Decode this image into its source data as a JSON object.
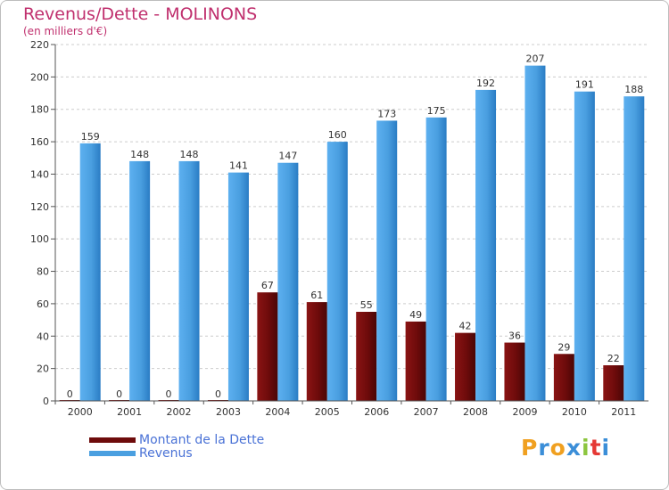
{
  "title": "Revenus/Dette - MOLINONS",
  "subtitle": "(en milliers d'€)",
  "logo": {
    "text": "Proxiti",
    "letters": [
      "P",
      "r",
      "o",
      "x",
      "i",
      "t",
      "i"
    ],
    "colors": [
      "#f0a020",
      "#3b8ed8",
      "#f0a020",
      "#3b8ed8",
      "#8dc63f",
      "#e53935",
      "#3b8ed8"
    ]
  },
  "colors": {
    "dette": "#6e0b0b",
    "revenus": "#4a9fe0",
    "axis": "#555555",
    "grid": "#cccccc"
  },
  "chart_data": {
    "type": "bar",
    "categories": [
      "2000",
      "2001",
      "2002",
      "2003",
      "2004",
      "2005",
      "2006",
      "2007",
      "2008",
      "2009",
      "2010",
      "2011"
    ],
    "series": [
      {
        "name": "Montant de la Dette",
        "values": [
          0,
          0,
          0,
          0,
          67,
          61,
          55,
          49,
          42,
          36,
          29,
          22
        ]
      },
      {
        "name": "Revenus",
        "values": [
          159,
          148,
          148,
          141,
          147,
          160,
          173,
          175,
          192,
          207,
          191,
          188
        ]
      }
    ],
    "ylim": [
      0,
      220
    ],
    "yticks": [
      0,
      20,
      40,
      60,
      80,
      100,
      120,
      140,
      160,
      180,
      200,
      220
    ],
    "grid": true,
    "legend": "bottom-left"
  }
}
